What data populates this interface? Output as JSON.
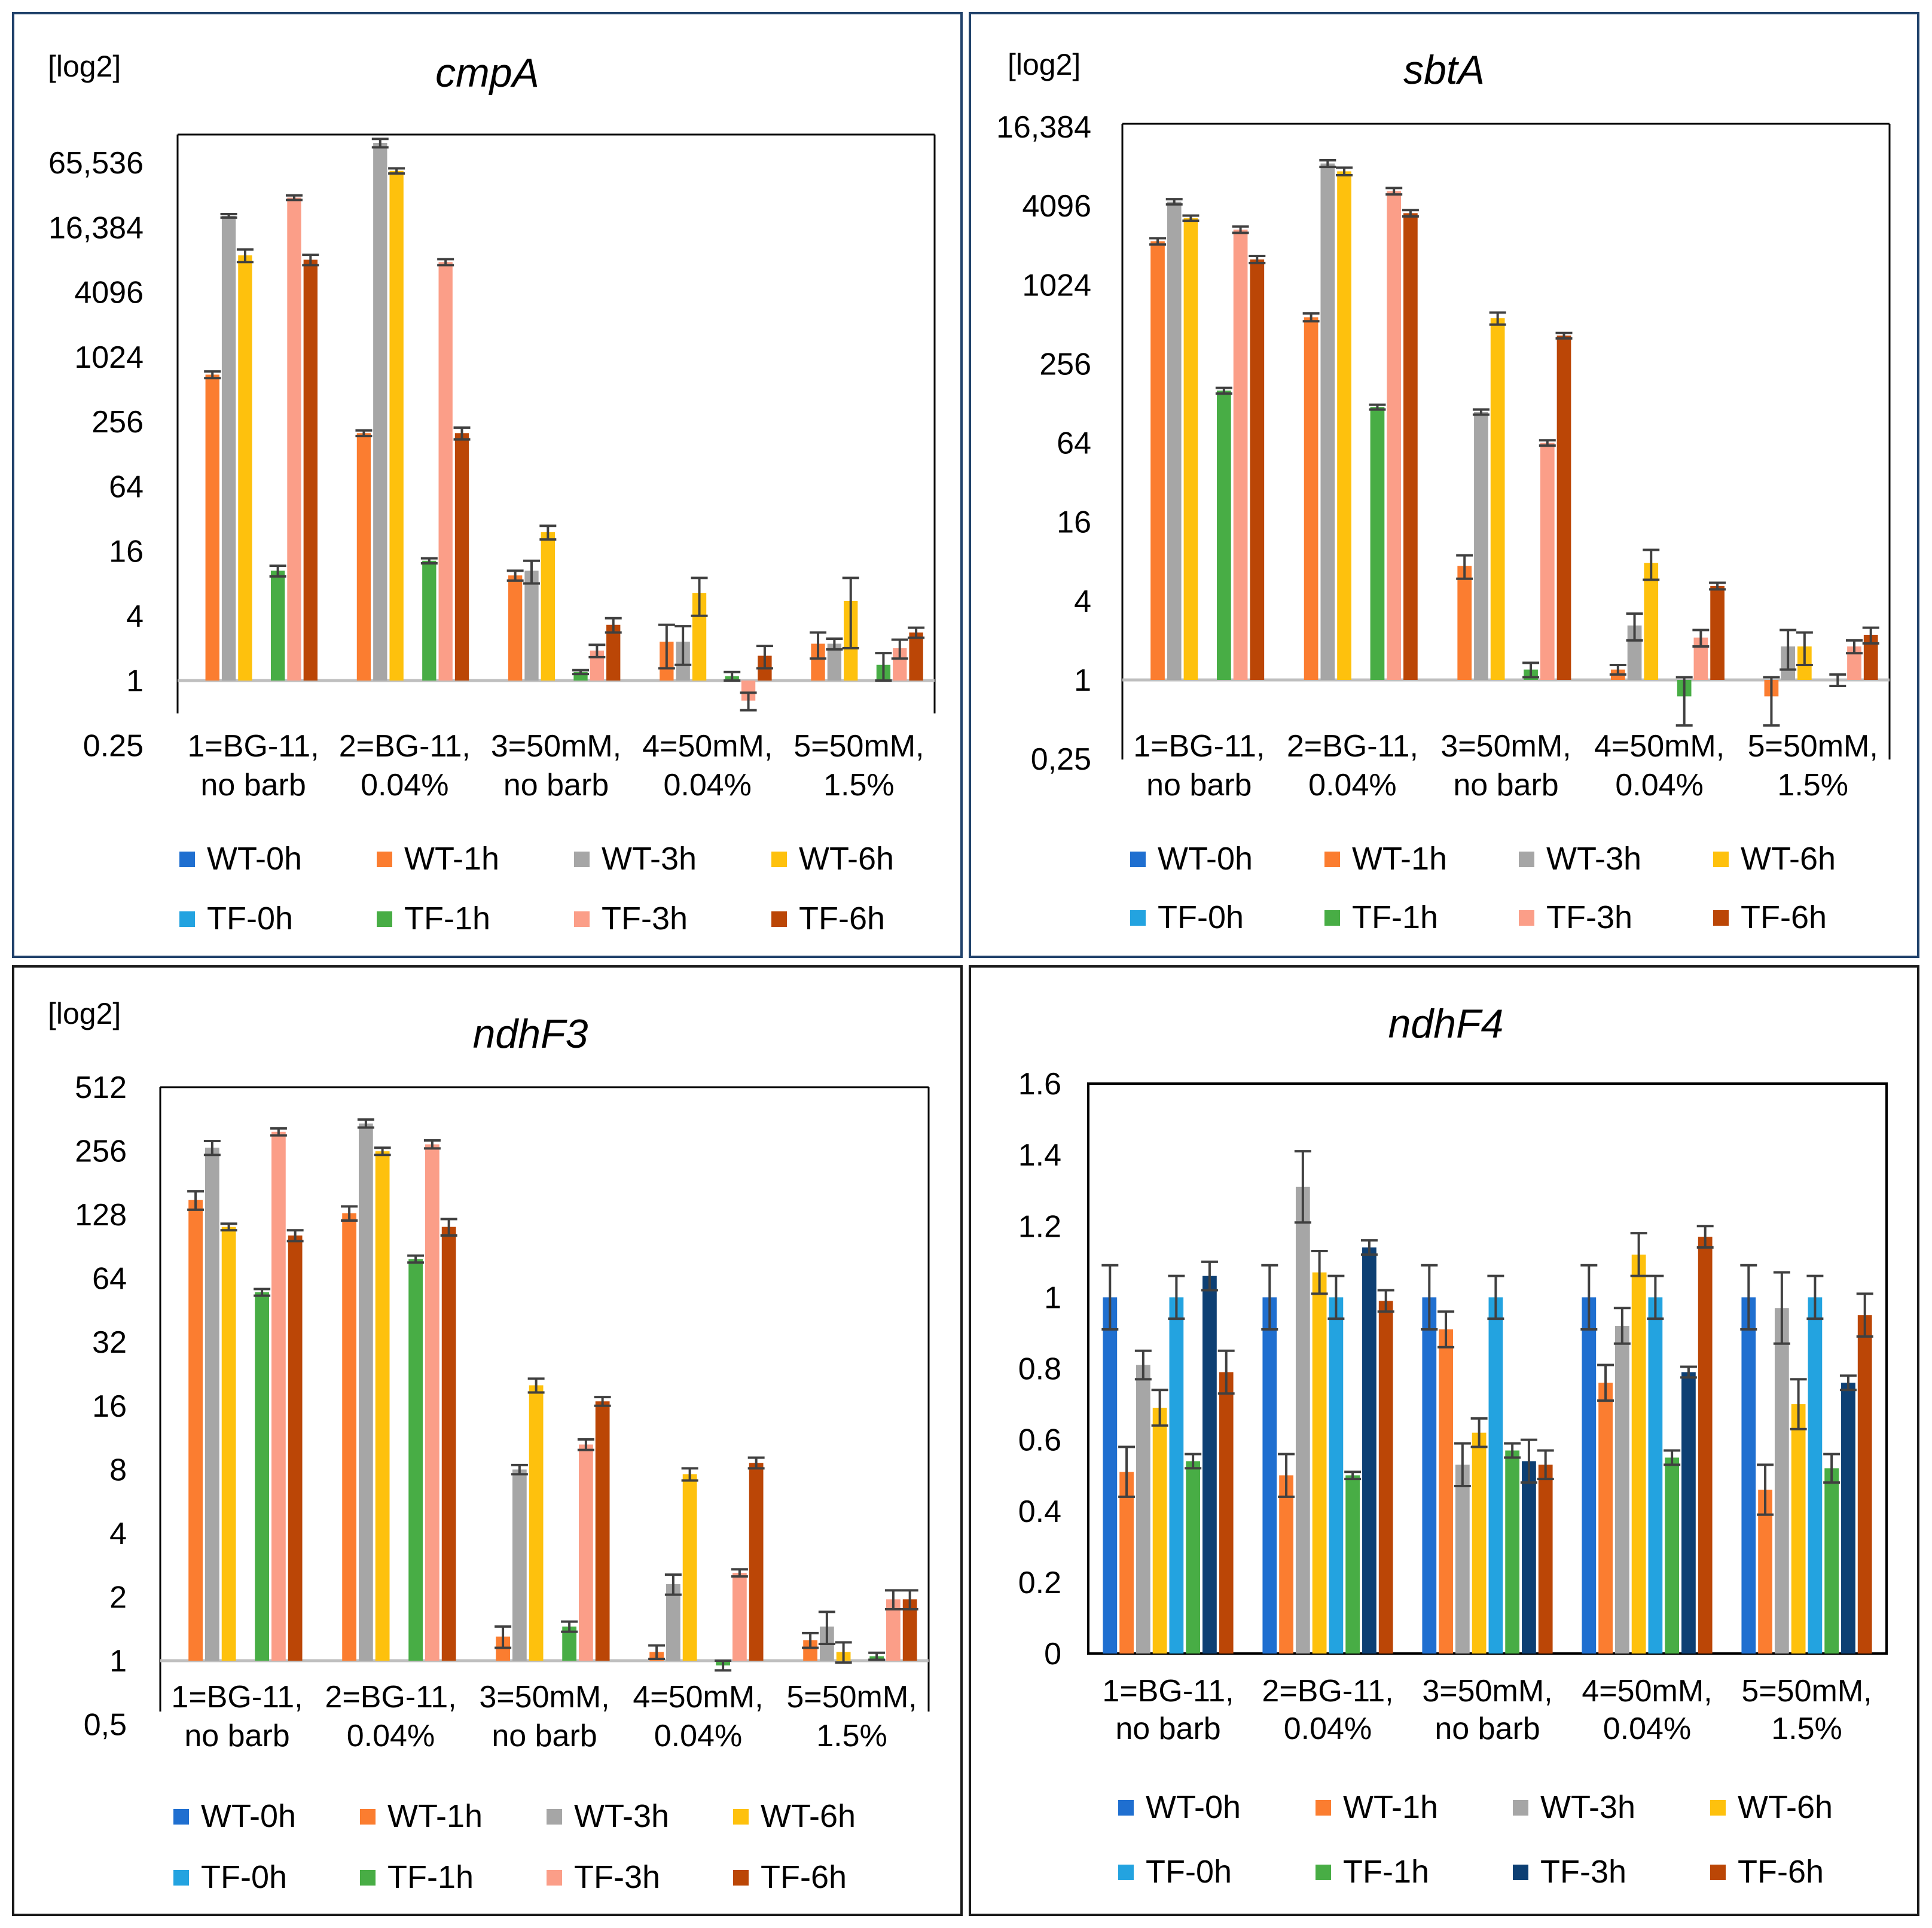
{
  "figure": {
    "colors": {
      "WT-0h": "#1f6fd0",
      "WT-1h": "#fb7d30",
      "WT-3h": "#a6a6a6",
      "WT-6h": "#fec10d",
      "TF-0h": "#23a3e0",
      "TF-1h": "#48ad45",
      "TF-3h": "#fb9e88",
      "TF-3h-dark": "#0d3f73",
      "TF-6h": "#bb4606",
      "panel_border_blue": "#21426b",
      "panel_border_black": "#1a1a1a",
      "error_bar": "#404040"
    }
  },
  "chart_data": [
    {
      "type": "bar",
      "scale": "log2",
      "title": "cmpA",
      "ylabel": "[log2]",
      "ylim": [
        0.25,
        131072
      ],
      "ytick_values": [
        0.25,
        1,
        4,
        16,
        64,
        256,
        1024,
        4096,
        16384,
        65536
      ],
      "ytick_labels": [
        "0.25",
        "1",
        "4",
        "16",
        "64",
        "256",
        "1024",
        "4096",
        "16,384",
        "65,536"
      ],
      "categories": [
        [
          "1=BG-11,",
          "no barb"
        ],
        [
          "2=BG-11,",
          "0.04%"
        ],
        [
          "3=50mM,",
          "no barb"
        ],
        [
          "4=50mM,",
          "0.04%"
        ],
        [
          "5=50mM,",
          "1.5%"
        ]
      ],
      "series": [
        {
          "name": "WT-0h",
          "color_key": "WT-0h",
          "values": [
            1,
            1,
            1,
            1,
            1
          ],
          "errors": [
            0,
            0,
            0,
            0,
            0
          ]
        },
        {
          "name": "WT-1h",
          "color_key": "WT-1h",
          "values": [
            700,
            200,
            9.5,
            2.3,
            2.2
          ],
          "errors": [
            50,
            12,
            1,
            1,
            0.6
          ]
        },
        {
          "name": "WT-3h",
          "color_key": "WT-3h",
          "values": [
            21000,
            100000,
            10.5,
            2.3,
            2.2
          ],
          "errors": [
            800,
            9000,
            2.5,
            0.9,
            0.25
          ]
        },
        {
          "name": "WT-6h",
          "color_key": "WT-6h",
          "values": [
            9000,
            55000,
            24,
            6.5,
            5.5
          ],
          "errors": [
            1200,
            3000,
            3.5,
            2.5,
            3.5
          ]
        },
        {
          "name": "TF-0h",
          "color_key": "TF-0h",
          "values": [
            1,
            1,
            1,
            1,
            1
          ],
          "errors": [
            0,
            0,
            0,
            0,
            0
          ]
        },
        {
          "name": "TF-1h",
          "color_key": "TF-1h",
          "values": [
            10.5,
            13,
            1.2,
            1.1,
            1.4
          ],
          "errors": [
            1.2,
            0.7,
            0.05,
            0.1,
            0.4
          ]
        },
        {
          "name": "TF-3h",
          "color_key": "TF-3h",
          "values": [
            31000,
            7800,
            1.9,
            0.65,
            2
          ],
          "errors": [
            1500,
            500,
            0.25,
            0.12,
            0.4
          ]
        },
        {
          "name": "TF-6h",
          "color_key": "TF-6h",
          "values": [
            8200,
            200,
            3.3,
            1.7,
            2.8
          ],
          "errors": [
            900,
            25,
            0.5,
            0.4,
            0.3
          ]
        }
      ],
      "legend": [
        "WT-0h",
        "WT-1h",
        "WT-3h",
        "WT-6h",
        "TF-0h",
        "TF-1h",
        "TF-3h",
        "TF-6h"
      ],
      "legend_position": "bottom"
    },
    {
      "type": "bar",
      "scale": "log2",
      "title": "sbtA",
      "ylabel": "[log2]",
      "ylim": [
        0.25,
        16384
      ],
      "ytick_values": [
        0.25,
        1,
        4,
        16,
        64,
        256,
        1024,
        4096,
        16384
      ],
      "ytick_labels": [
        "0,25",
        "1",
        "4",
        "16",
        "64",
        "256",
        "1024",
        "4096",
        "16,384"
      ],
      "categories": [
        [
          "1=BG-11,",
          "no barb"
        ],
        [
          "2=BG-11,",
          "0.04%"
        ],
        [
          "3=50mM,",
          "no barb"
        ],
        [
          "4=50mM,",
          "0.04%"
        ],
        [
          "5=50mM,",
          "1.5%"
        ]
      ],
      "series": [
        {
          "name": "WT-0h",
          "color_key": "WT-0h",
          "values": [
            1,
            1,
            1,
            1,
            1
          ],
          "errors": [
            0,
            0,
            0,
            0,
            0
          ]
        },
        {
          "name": "WT-1h",
          "color_key": "WT-1h",
          "values": [
            2200,
            580,
            7.4,
            1.2,
            0.75
          ],
          "errors": [
            120,
            40,
            1.5,
            0.1,
            0.3
          ]
        },
        {
          "name": "WT-3h",
          "color_key": "WT-3h",
          "values": [
            4400,
            8600,
            110,
            2.6,
            1.8
          ],
          "errors": [
            200,
            500,
            5,
            0.6,
            0.6
          ]
        },
        {
          "name": "WT-6h",
          "color_key": "WT-6h",
          "values": [
            3300,
            7500,
            570,
            7.8,
            1.8
          ],
          "errors": [
            150,
            500,
            60,
            2,
            0.5
          ]
        },
        {
          "name": "TF-0h",
          "color_key": "TF-0h",
          "values": [
            1,
            1,
            1,
            1,
            1
          ],
          "errors": [
            0,
            0,
            0,
            0,
            0
          ]
        },
        {
          "name": "TF-1h",
          "color_key": "TF-1h",
          "values": [
            160,
            120,
            1.2,
            0.75,
            1
          ],
          "errors": [
            8,
            5,
            0.15,
            0.3,
            0.1
          ]
        },
        {
          "name": "TF-3h",
          "color_key": "TF-3h",
          "values": [
            2700,
            5300,
            64,
            2.1,
            1.8
          ],
          "errors": [
            150,
            300,
            3,
            0.3,
            0.2
          ]
        },
        {
          "name": "TF-6h",
          "color_key": "TF-6h",
          "values": [
            1600,
            3600,
            420,
            5.2,
            2.2
          ],
          "errors": [
            100,
            200,
            20,
            0.3,
            0.3
          ]
        }
      ],
      "legend": [
        "WT-0h",
        "WT-1h",
        "WT-3h",
        "WT-6h",
        "TF-0h",
        "TF-1h",
        "TF-3h",
        "TF-6h"
      ],
      "legend_position": "bottom"
    },
    {
      "type": "bar",
      "scale": "log2",
      "title": "ndhF3",
      "ylabel": "[log2]",
      "ylim": [
        0.5,
        512
      ],
      "ytick_values": [
        0.5,
        1,
        2,
        4,
        8,
        16,
        32,
        64,
        128,
        256,
        512
      ],
      "ytick_labels": [
        "0,5",
        "1",
        "2",
        "4",
        "8",
        "16",
        "32",
        "64",
        "128",
        "256",
        "512"
      ],
      "categories": [
        [
          "1=BG-11,",
          "no barb"
        ],
        [
          "2=BG-11,",
          "0.04%"
        ],
        [
          "3=50mM,",
          "no barb"
        ],
        [
          "4=50mM,",
          "0.04%"
        ],
        [
          "5=50mM,",
          "1.5%"
        ]
      ],
      "series": [
        {
          "name": "WT-0h",
          "color_key": "WT-0h",
          "values": [
            1,
            1,
            1,
            1,
            1
          ],
          "errors": [
            0,
            0,
            0,
            0,
            0
          ]
        },
        {
          "name": "WT-1h",
          "color_key": "WT-1h",
          "values": [
            150,
            130,
            1.3,
            1.1,
            1.25
          ],
          "errors": [
            15,
            10,
            0.15,
            0.08,
            0.1
          ]
        },
        {
          "name": "WT-3h",
          "color_key": "WT-3h",
          "values": [
            265,
            345,
            8,
            2.3,
            1.45
          ],
          "errors": [
            20,
            15,
            0.4,
            0.25,
            0.25
          ]
        },
        {
          "name": "WT-6h",
          "color_key": "WT-6h",
          "values": [
            112,
            255,
            20,
            7.6,
            1.1
          ],
          "errors": [
            4,
            10,
            1.5,
            0.5,
            0.12
          ]
        },
        {
          "name": "TF-0h",
          "color_key": "TF-0h",
          "values": [
            1,
            1,
            1,
            1,
            1
          ],
          "errors": [
            0,
            0,
            0,
            0,
            0
          ]
        },
        {
          "name": "TF-1h",
          "color_key": "TF-1h",
          "values": [
            55,
            79,
            1.45,
            0.95,
            1.05
          ],
          "errors": [
            2,
            3,
            0.08,
            0.05,
            0.04
          ]
        },
        {
          "name": "TF-3h",
          "color_key": "TF-3h",
          "values": [
            315,
            275,
            10.5,
            2.6,
            1.95
          ],
          "errors": [
            12,
            12,
            0.6,
            0.1,
            0.2
          ]
        },
        {
          "name": "TF-6h",
          "color_key": "TF-6h",
          "values": [
            102,
            112,
            16.8,
            8.6,
            1.95
          ],
          "errors": [
            6,
            10,
            0.8,
            0.5,
            0.2
          ]
        }
      ],
      "legend": [
        "WT-0h",
        "WT-1h",
        "WT-3h",
        "WT-6h",
        "TF-0h",
        "TF-1h",
        "TF-3h",
        "TF-6h"
      ],
      "legend_position": "bottom"
    },
    {
      "type": "bar",
      "scale": "linear",
      "title": "ndhF4",
      "ylabel": "",
      "ylim": [
        0,
        1.6
      ],
      "ytick_values": [
        0,
        0.2,
        0.4,
        0.6,
        0.8,
        1,
        1.2,
        1.4,
        1.6
      ],
      "ytick_labels": [
        "0",
        "0.2",
        "0.4",
        "0.6",
        "0.8",
        "1",
        "1.2",
        "1.4",
        "1.6"
      ],
      "categories": [
        [
          "1=BG-11,",
          "no barb"
        ],
        [
          "2=BG-11,",
          "0.04%"
        ],
        [
          "3=50mM,",
          "no barb"
        ],
        [
          "4=50mM,",
          "0.04%"
        ],
        [
          "5=50mM,",
          "1.5%"
        ]
      ],
      "series": [
        {
          "name": "WT-0h",
          "color_key": "WT-0h",
          "values": [
            1,
            1,
            1,
            1,
            1
          ],
          "errors": [
            0.09,
            0.09,
            0.09,
            0.09,
            0.09
          ]
        },
        {
          "name": "WT-1h",
          "color_key": "WT-1h",
          "values": [
            0.51,
            0.5,
            0.91,
            0.76,
            0.46
          ],
          "errors": [
            0.07,
            0.06,
            0.05,
            0.05,
            0.07
          ]
        },
        {
          "name": "WT-3h",
          "color_key": "WT-3h",
          "values": [
            0.81,
            1.31,
            0.53,
            0.92,
            0.97
          ],
          "errors": [
            0.04,
            0.1,
            0.06,
            0.05,
            0.1
          ]
        },
        {
          "name": "WT-6h",
          "color_key": "WT-6h",
          "values": [
            0.69,
            1.07,
            0.62,
            1.12,
            0.7
          ],
          "errors": [
            0.05,
            0.06,
            0.04,
            0.06,
            0.07
          ]
        },
        {
          "name": "TF-0h",
          "color_key": "TF-0h",
          "values": [
            1,
            1,
            1,
            1,
            1
          ],
          "errors": [
            0.06,
            0.06,
            0.06,
            0.06,
            0.06
          ]
        },
        {
          "name": "TF-1h",
          "color_key": "TF-1h",
          "values": [
            0.54,
            0.5,
            0.57,
            0.55,
            0.52
          ],
          "errors": [
            0.02,
            0.01,
            0.02,
            0.02,
            0.04
          ]
        },
        {
          "name": "TF-3h",
          "color_key": "TF-3h-dark",
          "values": [
            1.06,
            1.14,
            0.54,
            0.79,
            0.76
          ],
          "errors": [
            0.04,
            0.02,
            0.06,
            0.015,
            0.02
          ]
        },
        {
          "name": "TF-6h",
          "color_key": "TF-6h",
          "values": [
            0.79,
            0.99,
            0.53,
            1.17,
            0.95
          ],
          "errors": [
            0.06,
            0.03,
            0.04,
            0.03,
            0.06
          ]
        }
      ],
      "legend": [
        "WT-0h",
        "WT-1h",
        "WT-3h",
        "WT-6h",
        "TF-0h",
        "TF-1h",
        "TF-3h",
        "TF-6h"
      ],
      "legend_position": "bottom"
    }
  ]
}
